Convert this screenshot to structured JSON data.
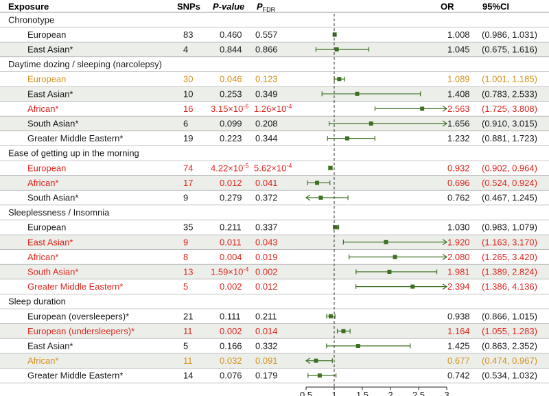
{
  "header": {
    "exposure": "Exposure",
    "snps": "SNPs",
    "pvalue": "P-value",
    "pfdr_p": "P",
    "pfdr_sub": "FDR",
    "or": "OR",
    "ci": "95%CI"
  },
  "colors": {
    "black": "#1a1a1a",
    "red": "#e0261e",
    "orange": "#d4921c",
    "marker": "#3d7023",
    "shade": "#eceeea",
    "refline": "#333333"
  },
  "chart_data": {
    "type": "forest",
    "xlabel": "",
    "xlim": [
      0.5,
      3
    ],
    "xticks": [
      0.5,
      1,
      1.5,
      2,
      2.5,
      3
    ],
    "xtick_labels": [
      "0.5",
      "1",
      "1.5",
      "2",
      "2.5",
      "3"
    ],
    "reference_line": 1,
    "groups": [
      {
        "title": "Chronotype",
        "rows": [
          {
            "label": "European",
            "snps": "83",
            "p": "0.460",
            "pfdr": "0.557",
            "or": 1.008,
            "lo": 0.986,
            "hi": 1.031,
            "or_text": "1.008",
            "ci_text": "(0.986, 1.031)",
            "color": "black"
          },
          {
            "label": "East Asian*",
            "snps": "4",
            "p": "0.844",
            "pfdr": "0.866",
            "or": 1.045,
            "lo": 0.675,
            "hi": 1.616,
            "or_text": "1.045",
            "ci_text": "(0.675, 1.616)",
            "color": "black"
          }
        ]
      },
      {
        "title": "Daytime dozing / sleeping (narcolepsy)",
        "rows": [
          {
            "label": "European",
            "snps": "30",
            "p": "0.046",
            "pfdr": "0.123",
            "or": 1.089,
            "lo": 1.001,
            "hi": 1.185,
            "or_text": "1.089",
            "ci_text": "(1.001, 1.185)",
            "color": "orange"
          },
          {
            "label": "East Asian*",
            "snps": "10",
            "p": "0.253",
            "pfdr": "0.349",
            "or": 1.408,
            "lo": 0.783,
            "hi": 2.533,
            "or_text": "1.408",
            "ci_text": "(0.783, 2.533)",
            "color": "black"
          },
          {
            "label": "African*",
            "snps": "16",
            "p": "3.15×10",
            "p_exp": "-6",
            "pfdr": "1.26×10",
            "pfdr_exp": "-4",
            "or": 2.563,
            "lo": 1.725,
            "hi": 3.808,
            "or_text": "2.563",
            "ci_text": "(1.725, 3.808)",
            "color": "red"
          },
          {
            "label": "South Asian*",
            "snps": "6",
            "p": "0.099",
            "pfdr": "0.208",
            "or": 1.656,
            "lo": 0.91,
            "hi": 3.015,
            "or_text": "1.656",
            "ci_text": "(0.910, 3.015)",
            "color": "black"
          },
          {
            "label": "Greater Middle Eastern*",
            "snps": "19",
            "p": "0.223",
            "pfdr": "0.344",
            "or": 1.232,
            "lo": 0.881,
            "hi": 1.723,
            "or_text": "1.232",
            "ci_text": "(0.881, 1.723)",
            "color": "black"
          }
        ]
      },
      {
        "title": "Ease of getting up in the morning",
        "rows": [
          {
            "label": "European",
            "snps": "74",
            "p": "4.22×10",
            "p_exp": "-5",
            "pfdr": "5.62×10",
            "pfdr_exp": "-4",
            "or": 0.932,
            "lo": 0.902,
            "hi": 0.964,
            "or_text": "0.932",
            "ci_text": "(0.902, 0.964)",
            "color": "red"
          },
          {
            "label": "African*",
            "snps": "17",
            "p": "0.012",
            "pfdr": "0.041",
            "or": 0.696,
            "lo": 0.524,
            "hi": 0.924,
            "or_text": "0.696",
            "ci_text": "(0.524, 0.924)",
            "color": "red"
          },
          {
            "label": "South Asian*",
            "snps": "9",
            "p": "0.279",
            "pfdr": "0.372",
            "or": 0.762,
            "lo": 0.467,
            "hi": 1.245,
            "or_text": "0.762",
            "ci_text": "(0.467, 1.245)",
            "color": "black"
          }
        ]
      },
      {
        "title": "Sleeplessness / Insomnia",
        "rows": [
          {
            "label": "European",
            "snps": "35",
            "p": "0.211",
            "pfdr": "0.337",
            "or": 1.03,
            "lo": 0.983,
            "hi": 1.079,
            "or_text": "1.030",
            "ci_text": "(0.983, 1.079)",
            "color": "black"
          },
          {
            "label": "East Asian*",
            "snps": "9",
            "p": "0.011",
            "pfdr": "0.043",
            "or": 1.92,
            "lo": 1.163,
            "hi": 3.17,
            "or_text": "1.920",
            "ci_text": "(1.163, 3.170)",
            "color": "red"
          },
          {
            "label": "African*",
            "snps": "8",
            "p": "0.004",
            "pfdr": "0.019",
            "or": 2.08,
            "lo": 1.265,
            "hi": 3.42,
            "or_text": "2.080",
            "ci_text": "(1.265, 3.420)",
            "color": "red"
          },
          {
            "label": "South Asian*",
            "snps": "13",
            "p": "1.59×10",
            "p_exp": "-4",
            "pfdr": "0.002",
            "or": 1.981,
            "lo": 1.389,
            "hi": 2.824,
            "or_text": "1.981",
            "ci_text": "(1.389, 2.824)",
            "color": "red"
          },
          {
            "label": "Greater Middle Eastern*",
            "snps": "5",
            "p": "0.002",
            "pfdr": "0.012",
            "or": 2.394,
            "lo": 1.386,
            "hi": 4.136,
            "or_text": "2.394",
            "ci_text": "(1.386, 4.136)",
            "color": "red"
          }
        ]
      },
      {
        "title": "Sleep duration",
        "rows": [
          {
            "label": "European (oversleepers)*",
            "snps": "21",
            "p": "0.111",
            "pfdr": "0.211",
            "or": 0.938,
            "lo": 0.866,
            "hi": 1.015,
            "or_text": "0.938",
            "ci_text": "(0.866, 1.015)",
            "color": "black"
          },
          {
            "label": "European (undersleepers)*",
            "snps": "11",
            "p": "0.002",
            "pfdr": "0.014",
            "or": 1.164,
            "lo": 1.055,
            "hi": 1.283,
            "or_text": "1.164",
            "ci_text": "(1.055, 1.283)",
            "color": "red"
          },
          {
            "label": "East Asian*",
            "snps": "5",
            "p": "0.166",
            "pfdr": "0.332",
            "or": 1.425,
            "lo": 0.863,
            "hi": 2.352,
            "or_text": "1.425",
            "ci_text": "(0.863, 2.352)",
            "color": "black"
          },
          {
            "label": "African*",
            "snps": "11",
            "p": "0.032",
            "pfdr": "0.091",
            "or": 0.677,
            "lo": 0.474,
            "hi": 0.967,
            "or_text": "0.677",
            "ci_text": "(0.474, 0.967)",
            "color": "orange"
          },
          {
            "label": "Greater Middle Eastern*",
            "snps": "14",
            "p": "0.076",
            "pfdr": "0.179",
            "or": 0.742,
            "lo": 0.534,
            "hi": 1.032,
            "or_text": "0.742",
            "ci_text": "(0.534, 1.032)",
            "color": "black"
          }
        ]
      }
    ]
  }
}
